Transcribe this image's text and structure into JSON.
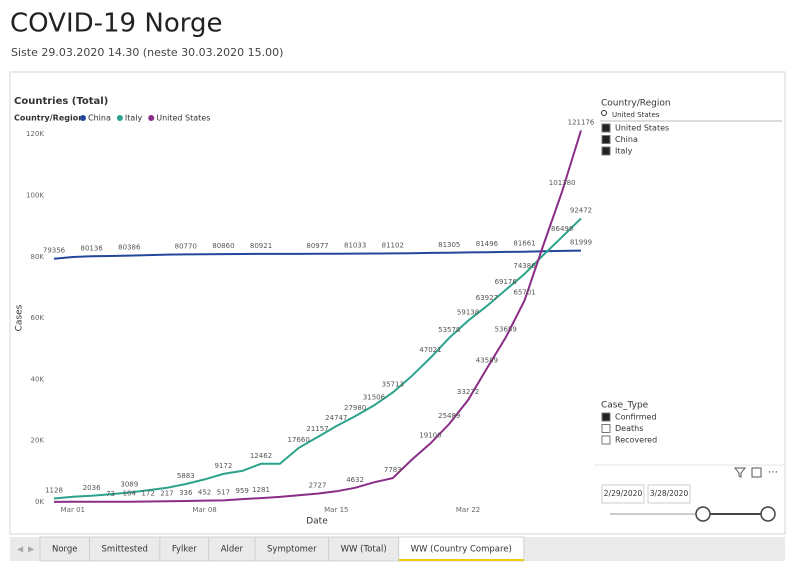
{
  "header": {
    "title": "COVID-19 Norge",
    "subtitle": "Siste 29.03.2020 14.30 (neste 30.03.2020 15.00)"
  },
  "chart_data": {
    "type": "line",
    "title": "Countries (Total)",
    "legend_title": "Country/Region",
    "x_label": "Date",
    "y_label": "Cases",
    "x": [
      "Feb 29",
      "Mar 01",
      "Mar 02",
      "Mar 03",
      "Mar 04",
      "Mar 05",
      "Mar 06",
      "Mar 07",
      "Mar 08",
      "Mar 09",
      "Mar 10",
      "Mar 11",
      "Mar 12",
      "Mar 13",
      "Mar 14",
      "Mar 15",
      "Mar 16",
      "Mar 17",
      "Mar 18",
      "Mar 19",
      "Mar 20",
      "Mar 21",
      "Mar 22",
      "Mar 23",
      "Mar 24",
      "Mar 25",
      "Mar 26",
      "Mar 27",
      "Mar 28"
    ],
    "xticks": [
      "Mar 01",
      "Mar 08",
      "Mar 15",
      "Mar 22"
    ],
    "ylim": [
      0,
      122000
    ],
    "yticks": [
      {
        "value": 0,
        "label": "0K"
      },
      {
        "value": 20000,
        "label": "20K"
      },
      {
        "value": 40000,
        "label": "40K"
      },
      {
        "value": 60000,
        "label": "60K"
      },
      {
        "value": 80000,
        "label": "80K"
      },
      {
        "value": 100000,
        "label": "100K"
      },
      {
        "value": 120000,
        "label": "120K"
      }
    ],
    "grid": false,
    "series": [
      {
        "name": "China",
        "color": "#24479c",
        "values": [
          79356,
          79932,
          80136,
          80261,
          80386,
          80537,
          80690,
          80770,
          80823,
          80860,
          80887,
          80921,
          80932,
          80945,
          80977,
          81003,
          81033,
          81058,
          81102,
          81156,
          81250,
          81305,
          81435,
          81496,
          81591,
          81661,
          81782,
          81897,
          81999
        ],
        "value_labels": [
          "79356",
          null,
          "80136",
          null,
          "80386",
          null,
          null,
          "80770",
          null,
          "80860",
          null,
          "80921",
          null,
          null,
          "80977",
          null,
          "81033",
          null,
          "81102",
          null,
          null,
          "81305",
          null,
          "81496",
          null,
          "81661",
          null,
          null,
          "81999"
        ]
      },
      {
        "name": "Italy",
        "color": "#2ba38b",
        "values": [
          1128,
          1694,
          2036,
          2502,
          3089,
          3858,
          4636,
          5883,
          7375,
          9172,
          10149,
          12462,
          12462,
          17660,
          21157,
          24747,
          27980,
          31506,
          35713,
          41035,
          47021,
          53578,
          59138,
          63927,
          69176,
          74386,
          80589,
          86498,
          92472
        ],
        "value_labels": [
          "1128",
          null,
          "2036",
          null,
          "3089",
          null,
          null,
          "5883",
          null,
          "9172",
          null,
          "12462",
          null,
          "17660",
          "21157",
          "24747",
          "27980",
          "31506",
          "35713",
          null,
          "47021",
          "53578",
          "59138",
          "63927",
          "69176",
          "74386",
          null,
          "86498",
          "92472"
        ]
      },
      {
        "name": "United States",
        "color": "#8a2d87",
        "values": [
          30,
          62,
          62,
          73,
          104,
          172,
          217,
          336,
          452,
          517,
          959,
          1281,
          1663,
          2179,
          2727,
          3499,
          4632,
          6421,
          7783,
          13747,
          19100,
          25489,
          33272,
          43589,
          53659,
          65701,
          83836,
          101380,
          121176
        ],
        "value_labels": [
          null,
          null,
          null,
          "73",
          "104",
          "172",
          "217",
          "336",
          "452",
          "517",
          "959",
          "1281",
          null,
          null,
          "2727",
          null,
          "4632",
          null,
          "7783",
          null,
          "19100",
          "25489",
          "33272",
          "43589",
          "53659",
          "65701",
          null,
          "101380",
          "121176"
        ]
      }
    ]
  },
  "slicers": {
    "country": {
      "title": "Country/Region",
      "search": "United States",
      "items": [
        {
          "label": "United States",
          "checked": true
        },
        {
          "label": "China",
          "checked": true
        },
        {
          "label": "Italy",
          "checked": true
        }
      ]
    },
    "case_type": {
      "title": "Case_Type",
      "items": [
        {
          "label": "Confirmed",
          "checked": true
        },
        {
          "label": "Deaths",
          "checked": false
        },
        {
          "label": "Recovered",
          "checked": false
        }
      ]
    },
    "date": {
      "start": "2/29/2020",
      "end": "3/28/2020"
    }
  },
  "tabs": {
    "items": [
      "Norge",
      "Smittested",
      "Fylker",
      "Alder",
      "Symptomer",
      "WW (Total)",
      "WW (Country Compare)"
    ],
    "active": 6
  }
}
